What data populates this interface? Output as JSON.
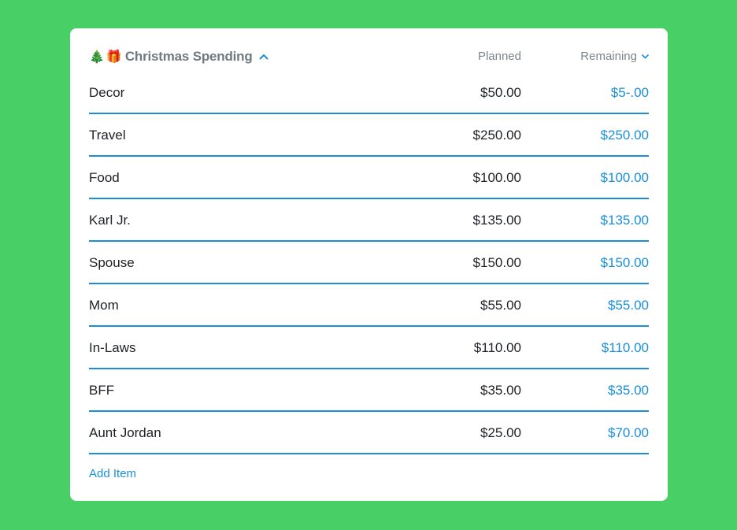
{
  "budget_group": {
    "emoji_tree": "🎄",
    "emoji_gift": "🎁",
    "title": "Christmas Spending",
    "columns": {
      "planned": "Planned",
      "remaining": "Remaining"
    },
    "items": [
      {
        "name": "Decor",
        "planned": "$50.00",
        "remaining": "$5-.00"
      },
      {
        "name": "Travel",
        "planned": "$250.00",
        "remaining": "$250.00"
      },
      {
        "name": "Food",
        "planned": "$100.00",
        "remaining": "$100.00"
      },
      {
        "name": "Karl Jr.",
        "planned": "$135.00",
        "remaining": "$135.00"
      },
      {
        "name": "Spouse",
        "planned": "$150.00",
        "remaining": "$150.00"
      },
      {
        "name": "Mom",
        "planned": "$55.00",
        "remaining": "$55.00"
      },
      {
        "name": "In-Laws",
        "planned": "$110.00",
        "remaining": "$110.00"
      },
      {
        "name": "BFF",
        "planned": "$35.00",
        "remaining": "$35.00"
      },
      {
        "name": "Aunt Jordan",
        "planned": "$25.00",
        "remaining": "$70.00"
      }
    ],
    "add_item_label": "Add Item"
  },
  "icons": {
    "collapse": "chevron-up-icon",
    "sort": "chevron-down-icon"
  },
  "colors": {
    "background": "#48cf66",
    "accent": "#1a8fd8",
    "title": "#6f7a80"
  }
}
